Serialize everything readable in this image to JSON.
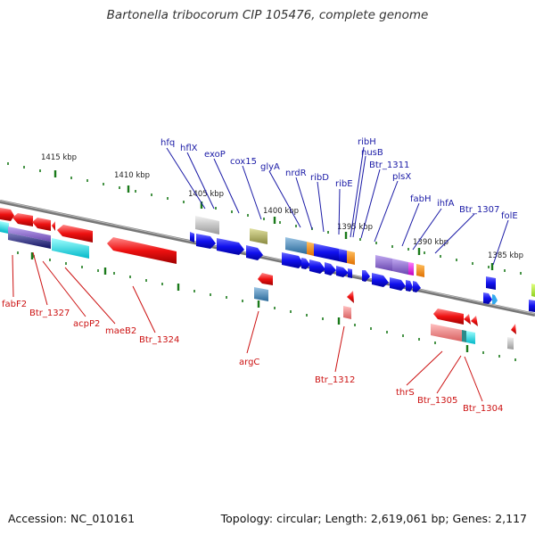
{
  "title": "Bartonella tribocorum CIP 105476, complete genome",
  "footer": {
    "accession": "Accession: NC_010161",
    "summary": "Topology: circular; Length: 2,619,061 bp; Genes: 2,117"
  },
  "colors": {
    "forward_strand": "#1111ee",
    "reverse_strand": "#ee1111",
    "label_forward": "#1a1aa6",
    "label_reverse": "#cc1111",
    "backbone": "#888888",
    "tick": "#1a7a1a"
  },
  "scale_labels": [
    "1415 kbp",
    "1410 kbp",
    "1405 kbp",
    "1400 kbp",
    "1395 kbp",
    "1390 kbp",
    "1385 kbp"
  ],
  "top_labels": [
    "hfq",
    "hflX",
    "exoP",
    "cox15",
    "glyA",
    "nrdR",
    "ribD",
    "ribE",
    "ribH",
    "nusB",
    "Btr_1311",
    "plsX",
    "fabH",
    "ihfA",
    "Btr_1307",
    "folE"
  ],
  "bottom_labels": [
    "fabF2",
    "Btr_1327",
    "acpP2",
    "maeB2",
    "Btr_1324",
    "argC",
    "Btr_1312",
    "thrS",
    "Btr_1305",
    "Btr_1304"
  ]
}
